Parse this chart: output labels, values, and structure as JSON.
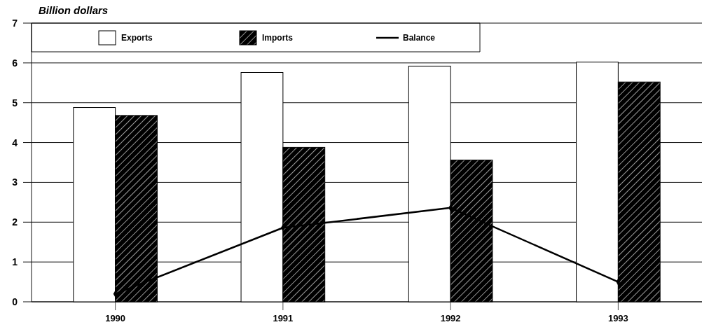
{
  "chart_data": {
    "type": "bar",
    "ylabel": "Billion dollars",
    "categories": [
      "1990",
      "1991",
      "1992",
      "1993"
    ],
    "series": [
      {
        "name": "Exports",
        "color": "#ffffff",
        "values": [
          4.88,
          5.76,
          5.92,
          6.02
        ]
      },
      {
        "name": "Imports",
        "color": "#000000",
        "values": [
          4.68,
          3.88,
          3.56,
          5.52
        ]
      },
      {
        "name": "Balance",
        "type": "line",
        "color": "#000000",
        "values": [
          0.2,
          1.86,
          2.36,
          0.5
        ]
      }
    ],
    "ylim": [
      0,
      7
    ],
    "yticks": [
      0,
      1,
      2,
      3,
      4,
      5,
      6,
      7
    ],
    "grid": "y",
    "legend": "top left",
    "marker": "diamond",
    "line_style": "solid"
  }
}
